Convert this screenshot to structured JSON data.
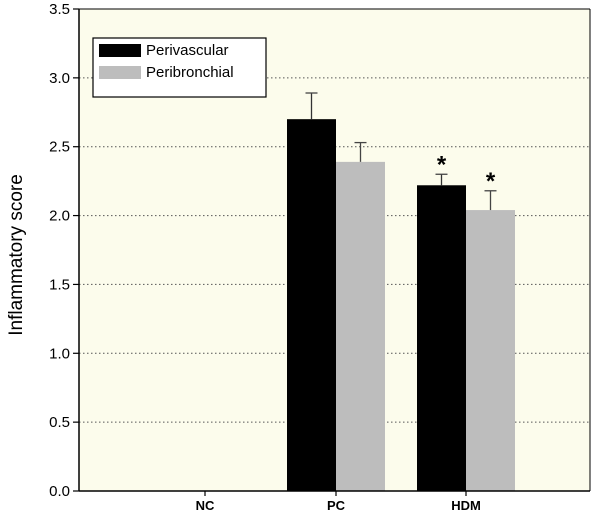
{
  "chart_data": {
    "type": "bar",
    "ylabel": "Inflammatory score",
    "ylim": [
      0,
      3.5
    ],
    "yticks": [
      "0.0",
      "0.5",
      "1.0",
      "1.5",
      "2.0",
      "2.5",
      "3.0",
      "3.5"
    ],
    "grid": "horizontal-dotted",
    "legend_position": "top-left",
    "categories": [
      "NC",
      "PC",
      "HDM"
    ],
    "series": [
      {
        "name": "Perivascular",
        "color": "#000000",
        "values": [
          0,
          2.7,
          2.22
        ],
        "errors": [
          0,
          0.19,
          0.08
        ],
        "significance": [
          "",
          "",
          "*"
        ]
      },
      {
        "name": "Peribronchial",
        "color": "#bdbdbd",
        "values": [
          0,
          2.39,
          2.04
        ],
        "errors": [
          0,
          0.14,
          0.14
        ],
        "significance": [
          "",
          "",
          "*"
        ]
      }
    ],
    "background_color": "#fcfcec"
  }
}
